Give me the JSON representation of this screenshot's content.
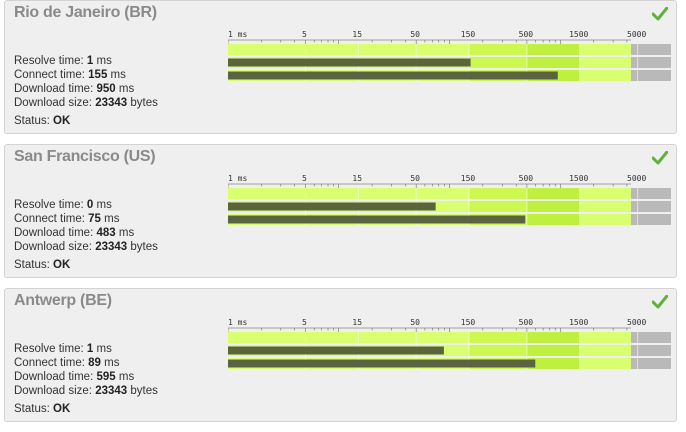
{
  "scale_labels": [
    "1 ms",
    "5",
    "15",
    "50",
    "150",
    "500",
    "1500",
    "5000"
  ],
  "scale_values": [
    1,
    5,
    15,
    50,
    150,
    500,
    1500,
    5000
  ],
  "scale_max": 10000,
  "labels": {
    "resolve": "Resolve time:",
    "connect": "Connect time:",
    "download": "Download time:",
    "size": "Download size:",
    "status": "Status:",
    "ms": "ms",
    "bytes": "bytes"
  },
  "colors": {
    "bar_fill": "#5a6440",
    "green_light": "#d9ff70",
    "green_mid": "#bff040",
    "green_dark": "#a4d818",
    "gray": "#b9b9b9",
    "check": "#5fb336"
  },
  "locations": [
    {
      "name": "Rio de Janeiro (BR)",
      "resolve_ms": "1",
      "connect_ms": "155",
      "download_ms": "950",
      "size_bytes": "23343",
      "status": "OK",
      "resolve_value": 1,
      "connect_value": 155,
      "download_value": 950
    },
    {
      "name": "San Francisco (US)",
      "resolve_ms": "0",
      "connect_ms": "75",
      "download_ms": "483",
      "size_bytes": "23343",
      "status": "OK",
      "resolve_value": 0,
      "connect_value": 75,
      "download_value": 483
    },
    {
      "name": "Antwerp (BE)",
      "resolve_ms": "1",
      "connect_ms": "89",
      "download_ms": "595",
      "size_bytes": "23343",
      "status": "OK",
      "resolve_value": 1,
      "connect_value": 89,
      "download_value": 595
    }
  ]
}
